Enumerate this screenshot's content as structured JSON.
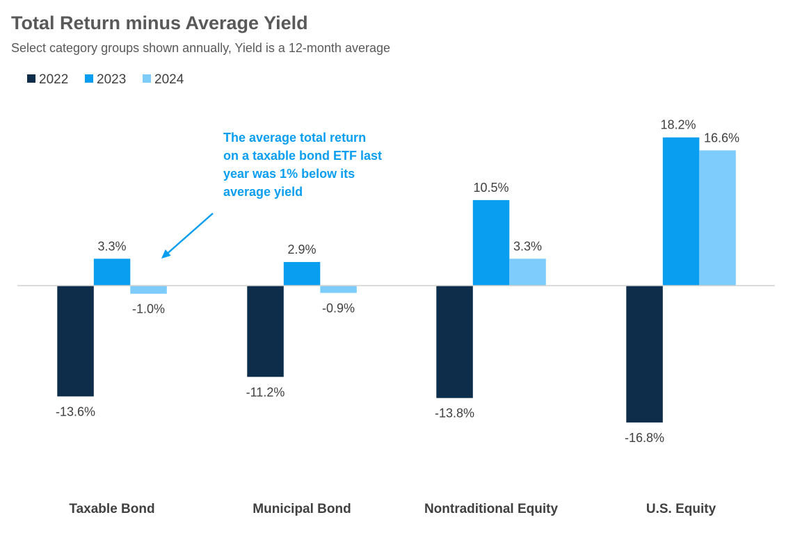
{
  "chart_data": {
    "type": "bar",
    "title": "Total Return minus Average Yield",
    "subtitle": "Select category groups shown annually, Yield is a 12-month average",
    "categories": [
      "Taxable Bond",
      "Municipal Bond",
      "Nontraditional Equity",
      "U.S. Equity"
    ],
    "series": [
      {
        "name": "2022",
        "color": "#0d2d4a",
        "values": [
          -13.6,
          -11.2,
          -13.8,
          -16.8
        ],
        "labels": [
          "-13.6%",
          "-11.2%",
          "-13.8%",
          "-16.8%"
        ]
      },
      {
        "name": "2023",
        "color": "#0a9ef0",
        "values": [
          3.3,
          2.9,
          10.5,
          18.2
        ],
        "labels": [
          "3.3%",
          "2.9%",
          "10.5%",
          "18.2%"
        ]
      },
      {
        "name": "2024",
        "color": "#7dccfb",
        "values": [
          -1.0,
          -0.9,
          3.3,
          16.6
        ],
        "labels": [
          "-1.0%",
          "-0.9%",
          "3.3%",
          "16.6%"
        ]
      }
    ],
    "legend_position": "top-left",
    "grid": false,
    "ylim": [
      -20,
      20
    ],
    "annotation": {
      "lines": [
        "The average total return",
        "on a taxable bond ETF last",
        "year was 1% below its",
        "average yield"
      ],
      "color": "#0a9ef0",
      "points_to": "Taxable Bond 2024"
    }
  }
}
